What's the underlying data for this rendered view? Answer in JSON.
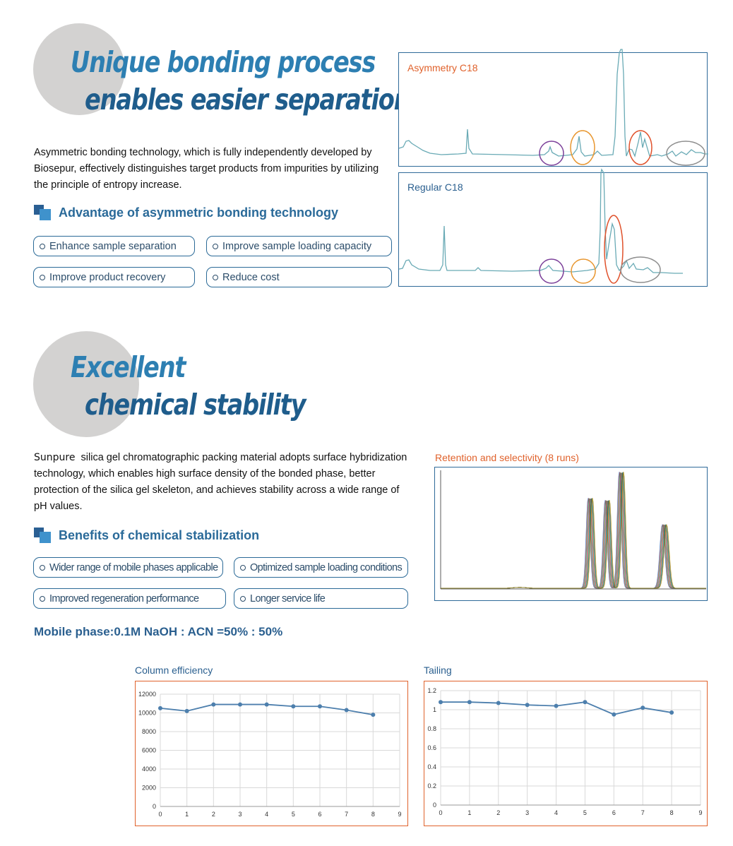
{
  "section1": {
    "title_line1": "Unique bonding process",
    "title_line2": "enables easier separation",
    "description": "Asymmetric bonding technology, which is fully independently developed by Biosepur, effectively distinguishes target products from impurities by utilizing the principle of entropy increase.",
    "subheading": "Advantage of asymmetric bonding technology",
    "advantages": [
      "Enhance sample separation",
      "Improve sample loading capacity",
      "Improve product recovery",
      "Reduce cost"
    ],
    "chromatogram_top_label": "Asymmetry C18",
    "chromatogram_bottom_label": "Regular C18",
    "colors": {
      "line": "#69aab5",
      "purple": "#7b3f99",
      "orange": "#e8962f",
      "red": "#e0522c",
      "gray": "#8e8e8e"
    }
  },
  "section2": {
    "title_line1": "Excellent",
    "title_line2": "chemical stability",
    "description_brand": "Sunpure",
    "description": "silica gel chromatographic packing material adopts surface hybridization technology, which enables high surface density of the bonded phase, better protection of the silica gel skeleton, and achieves stability across a wide range of pH values.",
    "subheading": "Benefits of chemical stabilization",
    "benefits": [
      "Wider range of mobile phases applicable",
      "Optimized sample loading conditions",
      "Improved regeneration performance",
      "Longer service life"
    ],
    "retention_title": "Retention and selectivity (8 runs)",
    "mobile_phase": "Mobile phase:0.1M NaOH : ACN =50% : 50%"
  },
  "chart_data": [
    {
      "type": "line",
      "title": "Column efficiency",
      "x": [
        0,
        1,
        2,
        3,
        4,
        5,
        6,
        7,
        8
      ],
      "values": [
        10500,
        10200,
        10900,
        10900,
        10900,
        10700,
        10700,
        10300,
        9800
      ],
      "xlim": [
        0,
        9
      ],
      "ylim": [
        0,
        12000
      ],
      "yticks": [
        0,
        2000,
        4000,
        6000,
        8000,
        10000,
        12000
      ],
      "ytick_labels": [
        "0",
        "2000",
        "4000",
        "6000",
        "8000",
        "10000",
        "12000"
      ],
      "xticks": [
        0,
        1,
        2,
        3,
        4,
        5,
        6,
        7,
        8,
        9
      ],
      "grid": true,
      "color": "#4d7fad"
    },
    {
      "type": "line",
      "title": "Tailing",
      "x": [
        0,
        1,
        2,
        3,
        4,
        5,
        6,
        7,
        8
      ],
      "values": [
        1.08,
        1.08,
        1.07,
        1.05,
        1.04,
        1.08,
        0.95,
        1.02,
        0.97
      ],
      "xlim": [
        0,
        9
      ],
      "ylim": [
        0,
        1.2
      ],
      "yticks": [
        0,
        0.2,
        0.4,
        0.6,
        0.8,
        1,
        1.2
      ],
      "ytick_labels": [
        "0",
        "0.2",
        "0.4",
        "0.6",
        "0.8",
        "1",
        "1.2"
      ],
      "xticks": [
        0,
        1,
        2,
        3,
        4,
        5,
        6,
        7,
        8,
        9
      ],
      "grid": true,
      "color": "#4d7fad"
    }
  ]
}
